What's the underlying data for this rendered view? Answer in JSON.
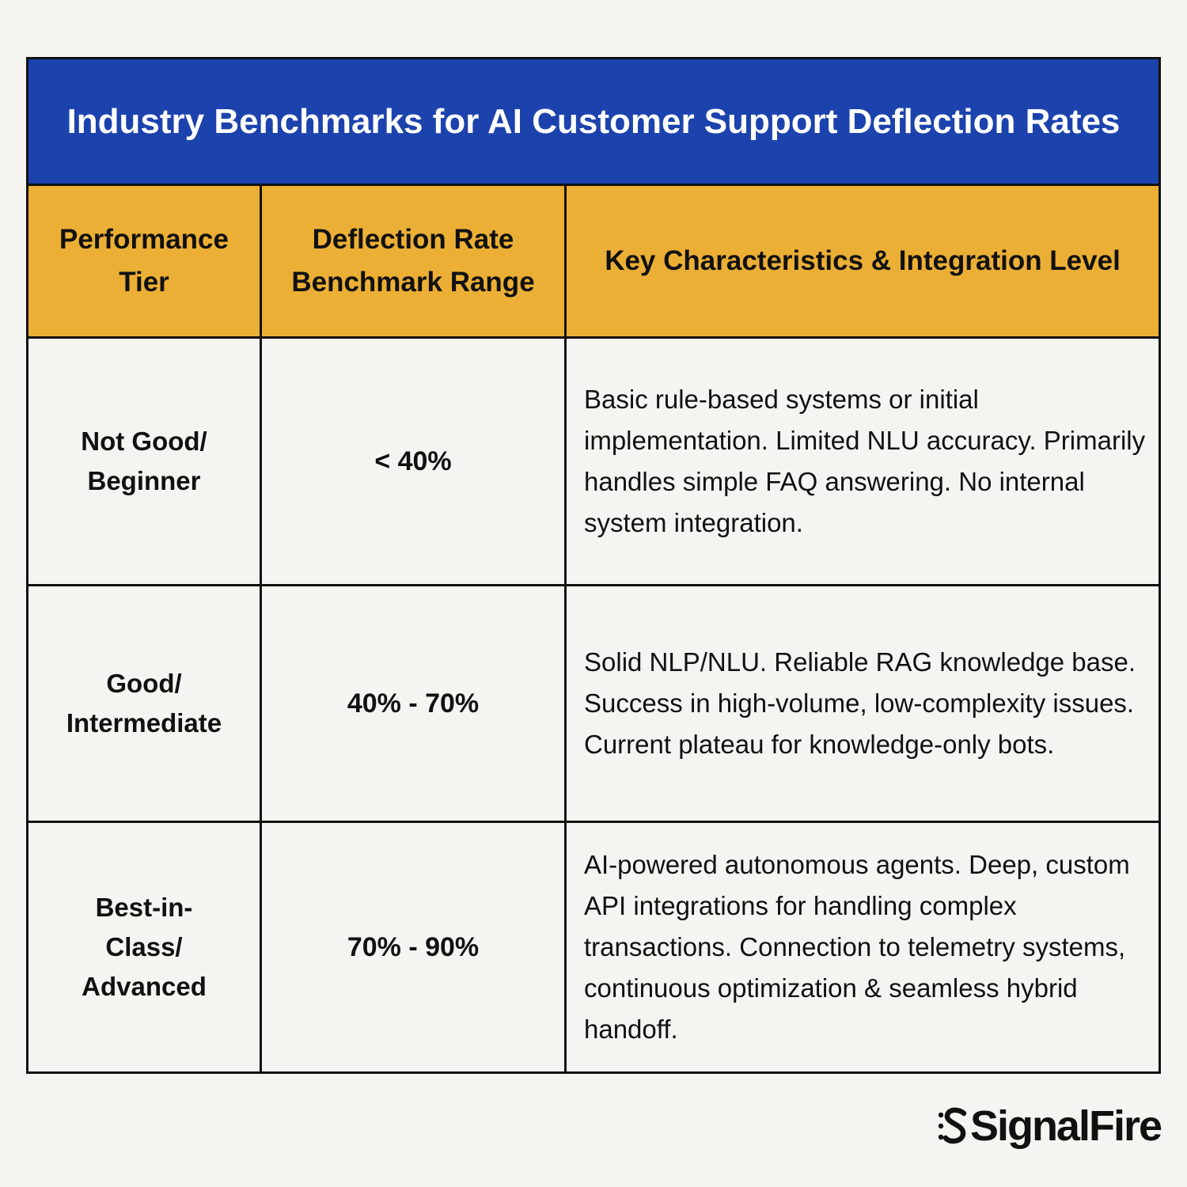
{
  "table": {
    "title": "Industry Benchmarks for AI Customer Support Deflection Rates",
    "headers": [
      "Performance Tier",
      "Deflection Rate Benchmark Range",
      "Key Characteristics & Integration Level"
    ],
    "rows": [
      {
        "tier": "Not Good/ Beginner",
        "range": "< 40%",
        "description": "Basic rule-based systems or initial implementation. Limited NLU accuracy. Primarily handles simple FAQ answering. No internal system integration."
      },
      {
        "tier": "Good/ Intermediate",
        "range": "40% - 70%",
        "description": "Solid NLP/NLU. Reliable RAG knowledge base. Success in high-volume, low-complexity issues. Current plateau for knowledge-only bots."
      },
      {
        "tier": "Best-in-Class/ Advanced",
        "range": "70% - 90%",
        "description": "AI-powered autonomous agents. Deep, custom API integrations for handling complex transactions. Connection to telemetry systems, continuous optimization & seamless hybrid handoff."
      }
    ]
  },
  "colors": {
    "title_background": "#1c43ad",
    "header_background": "#ecaf35",
    "page_background": "#f5f4f0",
    "border": "#111111"
  },
  "brand": {
    "logo_text": "SignalFire",
    "logo_icon": "signalfire-mark-icon"
  }
}
